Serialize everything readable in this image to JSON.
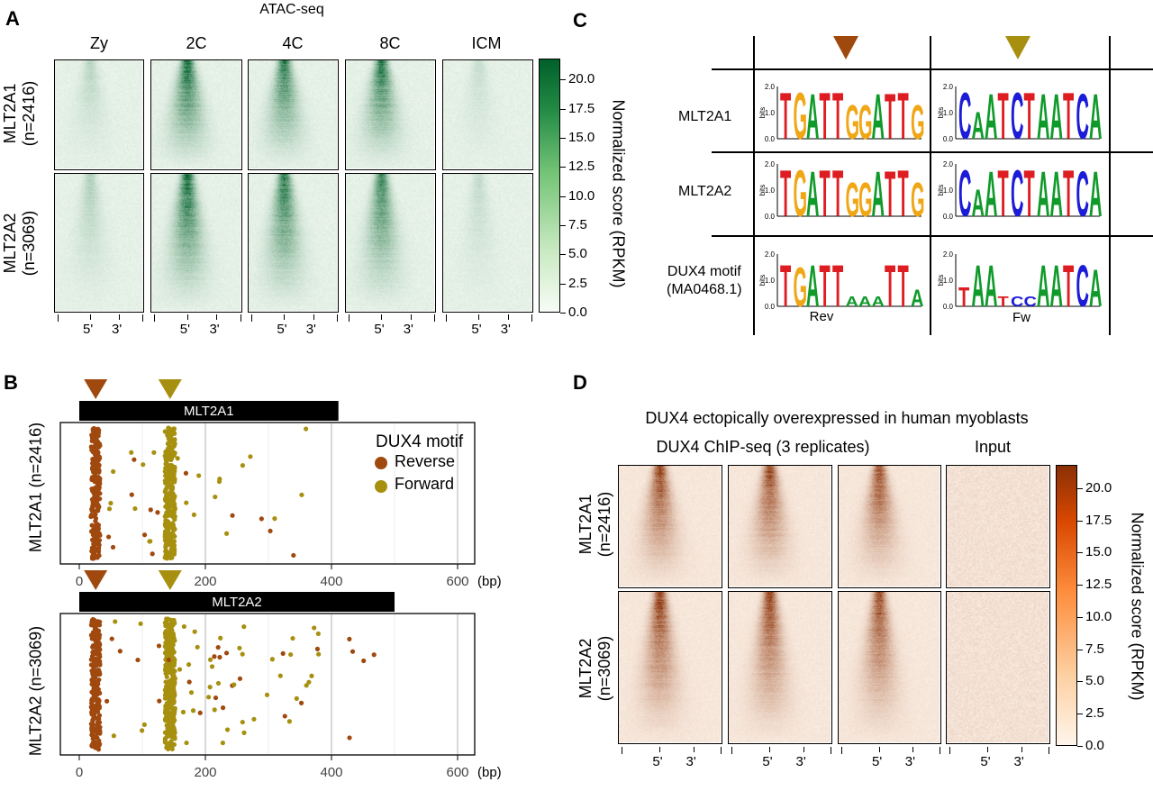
{
  "panelA": {
    "letter": "A",
    "title": "ATAC-seq",
    "columns": [
      "Zy",
      "2C",
      "4C",
      "8C",
      "ICM"
    ],
    "rows": [
      {
        "name": "MLT2A1",
        "n": "(n=2416)"
      },
      {
        "name": "MLT2A2",
        "n": "(n=3069)"
      }
    ],
    "xticks": [
      "5'",
      "3'"
    ],
    "colorbar": {
      "label": "Normalized score (RPKM)",
      "ticks": [
        "20.0",
        "17.5",
        "15.0",
        "12.5",
        "10.0",
        "7.5",
        "5.0",
        "2.5",
        "0.0"
      ],
      "color_high": "#00602a",
      "color_low": "#f7fcf5"
    }
  },
  "panelB": {
    "letter": "B",
    "legend_title": "DUX4 motif",
    "legend_items": [
      {
        "label": "Reverse",
        "color": "#a0490f"
      },
      {
        "label": "Forward",
        "color": "#a7900f"
      }
    ],
    "plots": [
      {
        "bar_label": "MLT2A1",
        "ylabel": "MLT2A1 (n=2416)",
        "bar_end_bp": 411,
        "xticks": [
          "0",
          "200",
          "400",
          "600"
        ],
        "unit": "(bp)"
      },
      {
        "bar_label": "MLT2A2",
        "ylabel": "MLT2A2 (n=3069)",
        "bar_end_bp": 500,
        "xticks": [
          "0",
          "200",
          "400",
          "600"
        ],
        "unit": "(bp)"
      }
    ]
  },
  "panelC": {
    "letter": "C",
    "rows": [
      "MLT2A1",
      "MLT2A2",
      "DUX4 motif\n(MA0468.1)"
    ],
    "logo_axis": {
      "ylabel": "bits",
      "ticks": [
        "2.0",
        "1.0",
        "0.0"
      ]
    },
    "logos": {
      "rev": "TGATTGGATTG",
      "fw": "CAATCTAATCA",
      "dux_rev": "TGATTAAATTA",
      "dux_fw": "TAATCCAATCA"
    },
    "bottom_labels": [
      "Rev",
      "Fw"
    ],
    "arrow_colors": [
      "#a0490f",
      "#a7900f"
    ]
  },
  "panelD": {
    "letter": "D",
    "title": "DUX4 ectopically overexpressed in human myoblasts",
    "group_chip": "DUX4 ChIP-seq (3 replicates)",
    "group_input": "Input",
    "rows": [
      {
        "name": "MLT2A1",
        "n": "(n=2416)"
      },
      {
        "name": "MLT2A2",
        "n": "(n=3069)"
      }
    ],
    "xticks": [
      "5'",
      "3'"
    ],
    "colorbar": {
      "label": "Normalized score (RPKM)",
      "ticks": [
        "20.0",
        "17.5",
        "15.0",
        "12.5",
        "10.0",
        "7.5",
        "5.0",
        "2.5",
        "0.0"
      ],
      "color_high": "#8a3005",
      "color_low": "#fff5eb"
    }
  }
}
